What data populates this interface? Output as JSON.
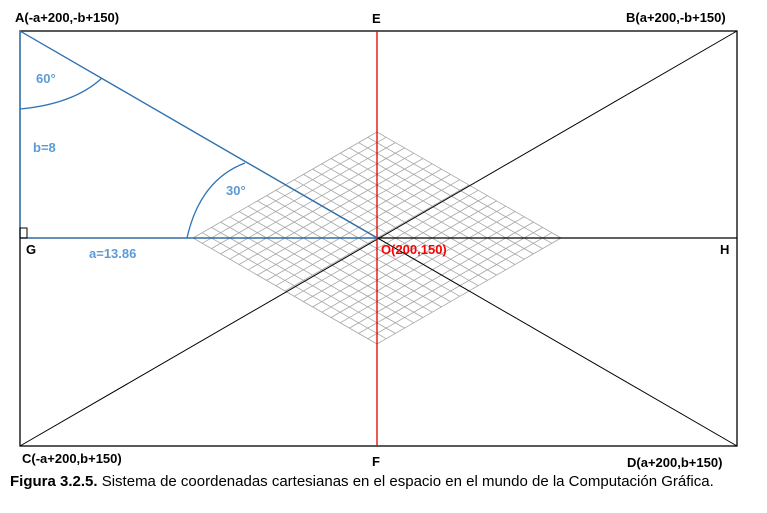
{
  "points": {
    "A": "A(-a+200,-b+150)",
    "B": "B(a+200,-b+150)",
    "C": "C(-a+200,b+150)",
    "D": "D(a+200,b+150)",
    "E": "E",
    "F": "F",
    "G": "G",
    "H": "H",
    "O": "O(200,150)"
  },
  "measures": {
    "angle_top": "60°",
    "angle_bottom": "30°",
    "b": "b=8",
    "a": "a=13.86"
  },
  "caption": {
    "figure": "Figura 3.2.5.",
    "text": "Sistema de coordenadas cartesianas en el espacio en el mundo de la Computación Gráfica."
  },
  "colors": {
    "axis": "#000000",
    "vertical": "#e00000",
    "triangle": "#2e75b6",
    "grid": "#a6a6a6",
    "label_blue": "#5b9bd5",
    "label_red": "#ff0000"
  }
}
